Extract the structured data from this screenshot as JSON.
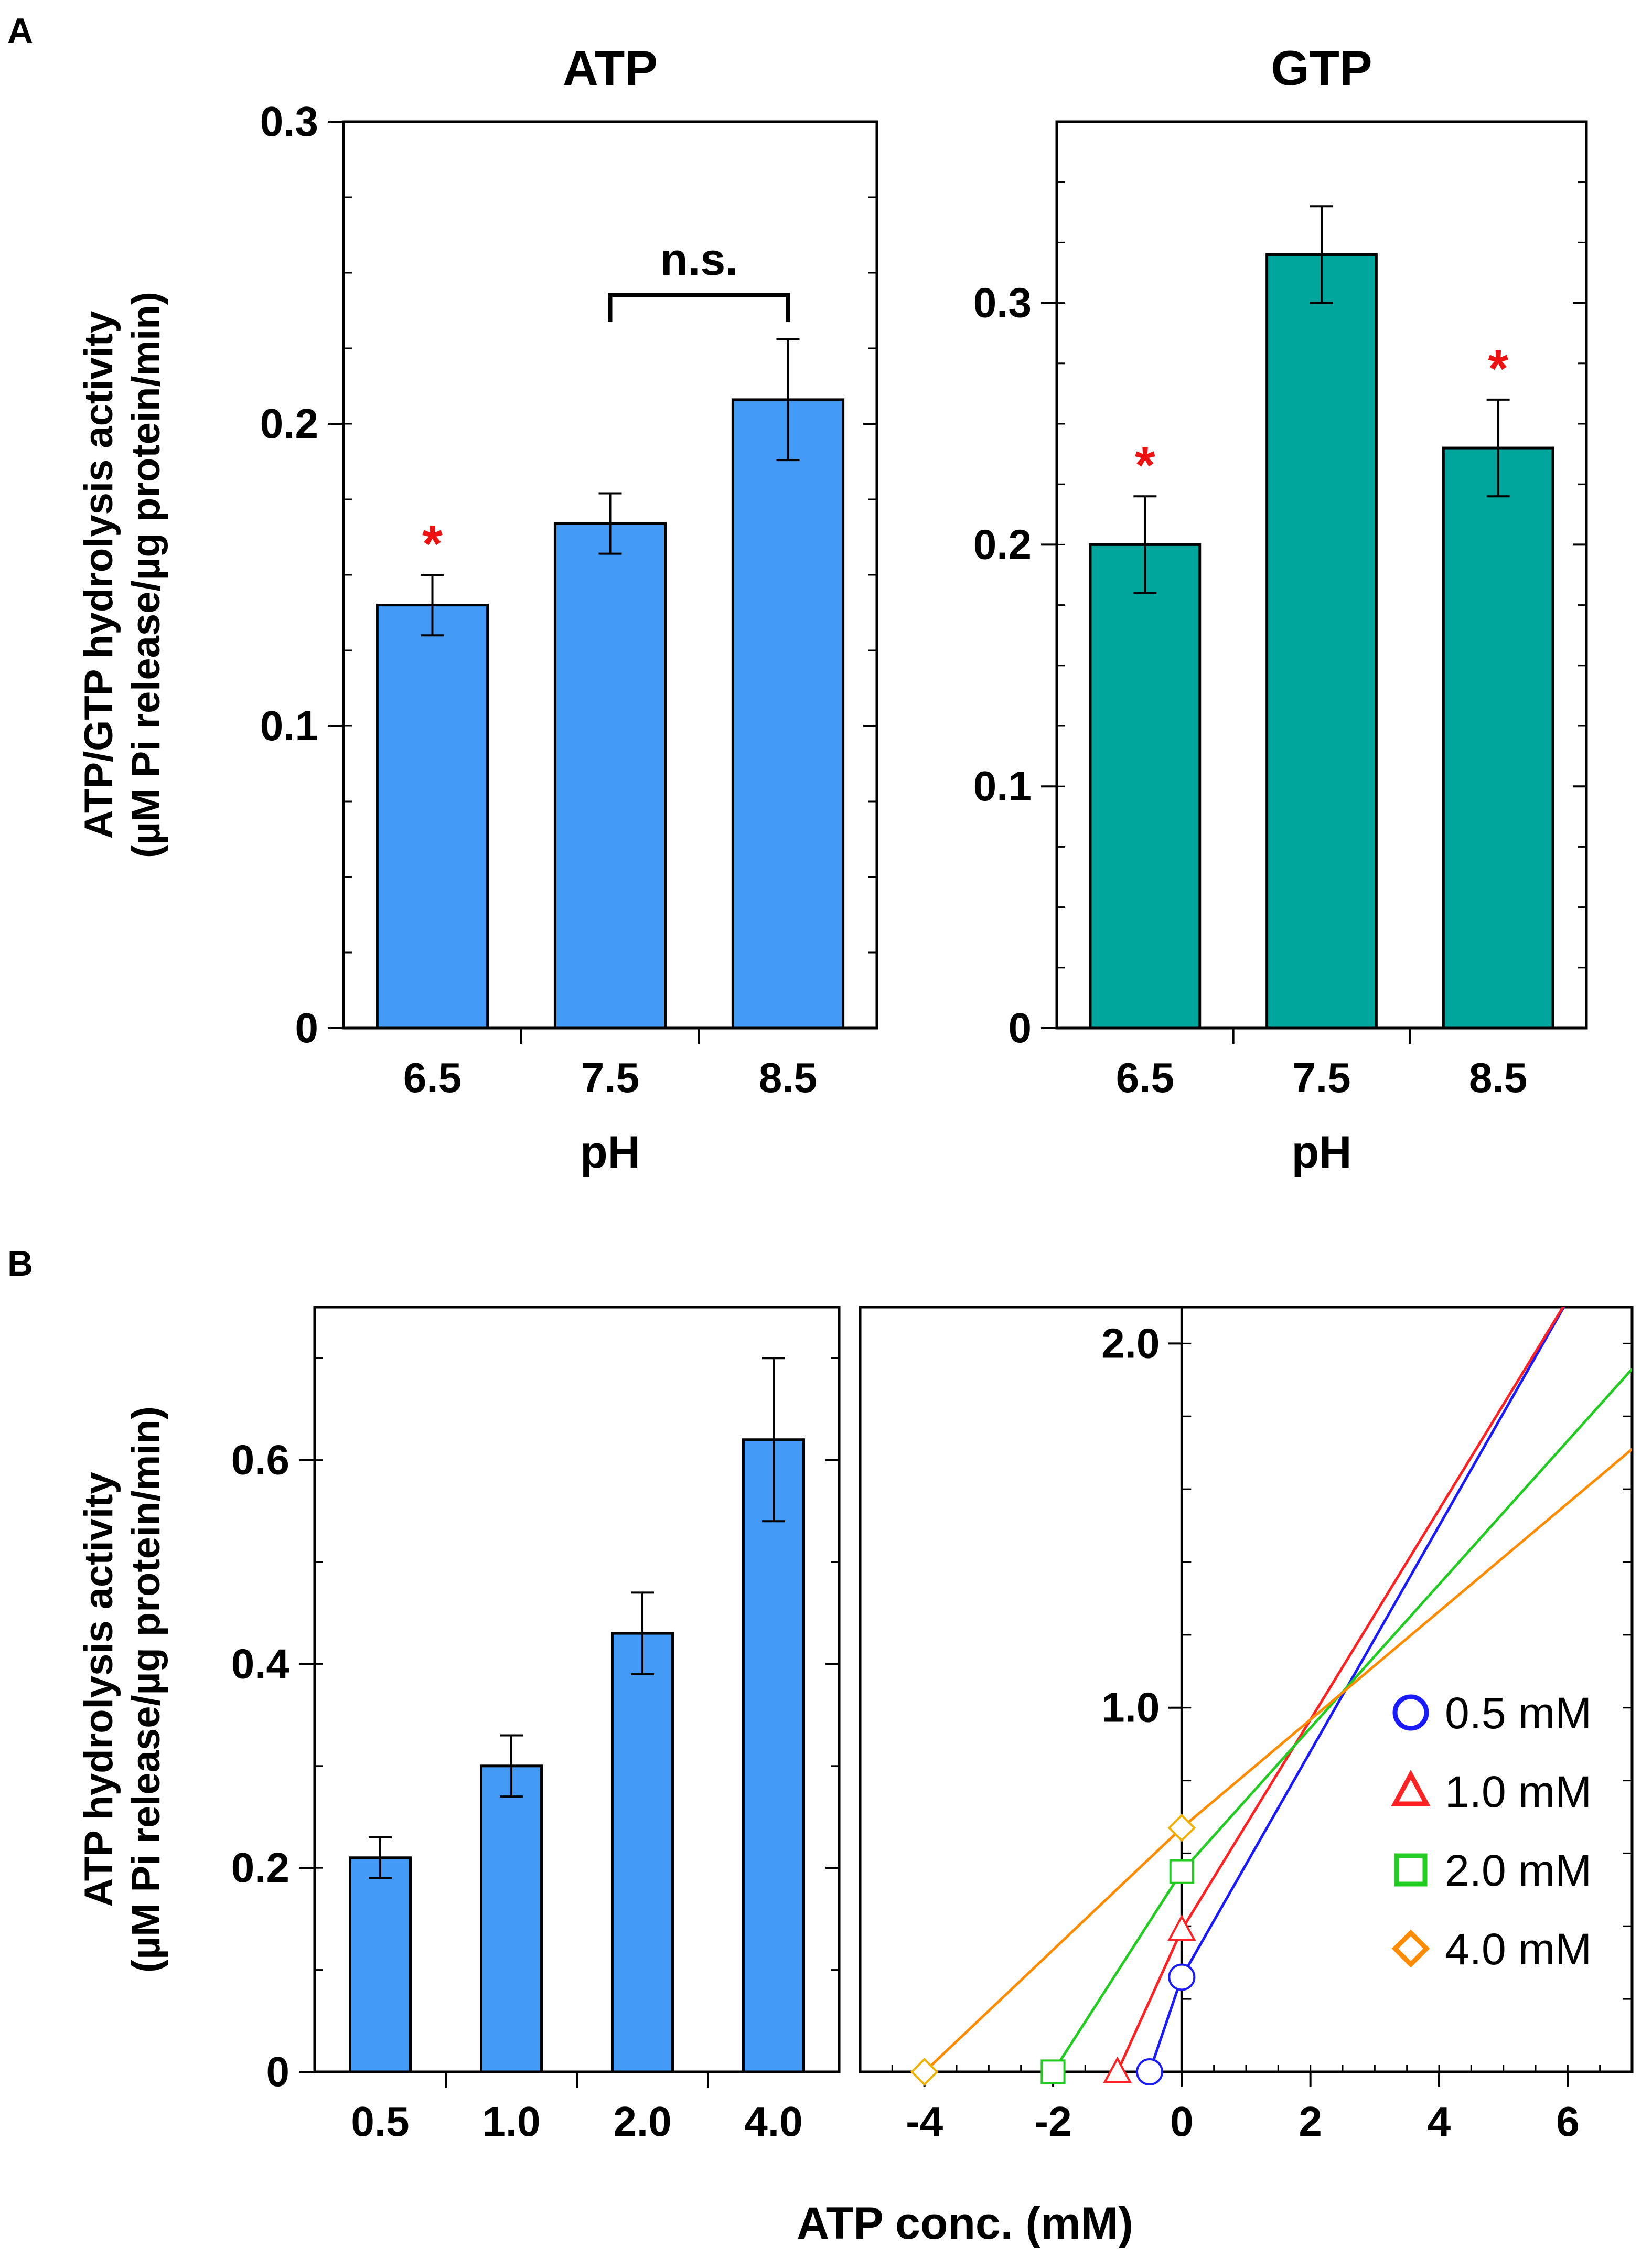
{
  "panel_labels": {
    "a": "A",
    "b": "B"
  },
  "colors": {
    "atp_bar": "#439bf7",
    "gtp_bar": "#00a69c",
    "significance": "#ee1111",
    "axis": "#000000",
    "series_0_5": "#1a1aff",
    "series_1_0": "#ff2222",
    "series_2_0": "#22cc22",
    "series_4_0": "#ff8c00",
    "marker_4_0": "#f0b000"
  },
  "chart_data": [
    {
      "id": "atp_ph",
      "type": "bar",
      "title": "ATP",
      "xlabel": "pH",
      "ylabel": [
        "ATP/GTP hydrolysis activity",
        "(µM Pi release/µg protein/min)"
      ],
      "categories": [
        "6.5",
        "7.5",
        "8.5"
      ],
      "values": [
        0.14,
        0.167,
        0.208
      ],
      "errors": [
        0.01,
        0.01,
        0.02
      ],
      "significance": [
        "*",
        "",
        ""
      ],
      "bracket": {
        "from": 1,
        "to": 2,
        "label": "n.s."
      },
      "ylim": [
        0,
        0.3
      ],
      "yticks": [
        0,
        0.1,
        0.2,
        0.3
      ],
      "ytick_labels": [
        "0",
        "0.1",
        "0.2",
        "0.3"
      ],
      "minor_step": 0.025
    },
    {
      "id": "gtp_ph",
      "type": "bar",
      "title": "GTP",
      "xlabel": "pH",
      "categories": [
        "6.5",
        "7.5",
        "8.5"
      ],
      "values": [
        0.2,
        0.32,
        0.24
      ],
      "errors": [
        0.02,
        0.02,
        0.02
      ],
      "significance": [
        "*",
        "",
        "*"
      ],
      "ylim": [
        0,
        0.375
      ],
      "yticks": [
        0,
        0.1,
        0.2,
        0.3
      ],
      "ytick_labels": [
        "0",
        "0.1",
        "0.2",
        "0.3"
      ],
      "minor_step": 0.025
    },
    {
      "id": "atp_conc",
      "type": "bar",
      "xlabel": "ATP conc. (mM)",
      "ylabel": [
        "ATP hydrolysis activity",
        "(µM Pi release/µg protein/min)"
      ],
      "categories": [
        "0.5",
        "1.0",
        "2.0",
        "4.0"
      ],
      "values": [
        0.21,
        0.3,
        0.43,
        0.62
      ],
      "errors": [
        0.02,
        0.03,
        0.04,
        0.08
      ],
      "ylim": [
        0,
        0.75
      ],
      "yticks": [
        0,
        0.2,
        0.4,
        0.6
      ],
      "ytick_labels": [
        "0",
        "0.2",
        "0.4",
        "0.6"
      ],
      "minor_step": 0.1
    },
    {
      "id": "hanes_woolf",
      "type": "line",
      "xlim": [
        -5,
        7
      ],
      "ylim": [
        0,
        2.1
      ],
      "xticks": [
        -4,
        -2,
        0,
        2,
        4,
        6
      ],
      "xtick_labels": [
        "-4",
        "-2",
        "0",
        "2",
        "4",
        "6"
      ],
      "yticks": [
        1.0,
        2.0
      ],
      "ytick_labels": [
        "1.0",
        "2.0"
      ],
      "x_minor_step": 0.5,
      "y_minor_step": 0.2,
      "series": [
        {
          "name": "0.5 mM",
          "marker": "circle",
          "x_intercept": -0.5,
          "y_intercept": 0.26,
          "x": [
            -0.5,
            0,
            6.1
          ],
          "y": [
            0,
            0.26,
            2.15
          ]
        },
        {
          "name": "1.0 mM",
          "marker": "triangle",
          "x_intercept": -1.0,
          "y_intercept": 0.39,
          "x": [
            -1.0,
            0,
            6.1
          ],
          "y": [
            0,
            0.39,
            2.15
          ]
        },
        {
          "name": "2.0 mM",
          "marker": "square",
          "x_intercept": -2.0,
          "y_intercept": 0.55,
          "x": [
            -2.0,
            0,
            7.0
          ],
          "y": [
            0,
            0.55,
            1.93
          ]
        },
        {
          "name": "4.0 mM",
          "marker": "diamond",
          "x_intercept": -4.0,
          "y_intercept": 0.67,
          "x": [
            -4.0,
            0,
            7.0
          ],
          "y": [
            0,
            0.67,
            1.71
          ]
        }
      ],
      "legend": {
        "position": "bottom-right",
        "entries": [
          "0.5 mM",
          "1.0 mM",
          "2.0 mM",
          "4.0 mM"
        ]
      }
    }
  ]
}
